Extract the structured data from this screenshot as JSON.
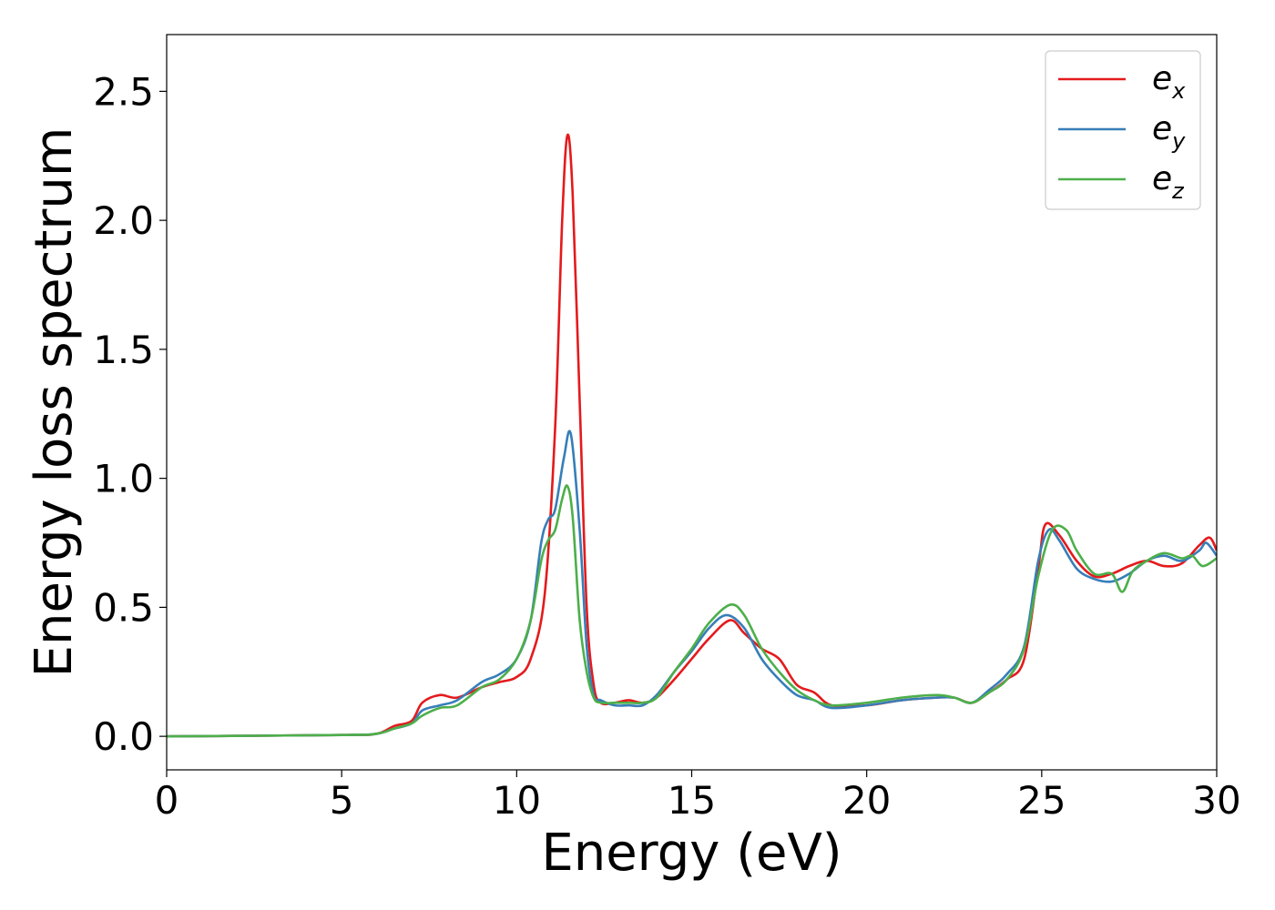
{
  "chart_data": {
    "type": "line",
    "title": "",
    "xlabel": "Energy (eV)",
    "ylabel": "Energy loss spectrum",
    "xlim": [
      0,
      30
    ],
    "ylim": [
      -0.13,
      2.72
    ],
    "xticks": [
      0,
      5,
      10,
      15,
      20,
      25,
      30
    ],
    "xtick_labels": [
      "0",
      "5",
      "10",
      "15",
      "20",
      "25",
      "30"
    ],
    "yticks": [
      0.0,
      0.5,
      1.0,
      1.5,
      2.0,
      2.5
    ],
    "ytick_labels": [
      "0.0",
      "0.5",
      "1.0",
      "1.5",
      "2.0",
      "2.5"
    ],
    "grid": false,
    "legend_position": "top-right",
    "series": [
      {
        "name": "e_x",
        "label_main": "e",
        "label_sub": "x",
        "color": "#e41a1c",
        "x": [
          0,
          5,
          6.0,
          6.5,
          7.0,
          7.3,
          7.8,
          8.3,
          9.0,
          9.5,
          10.0,
          10.4,
          10.8,
          11.1,
          11.3,
          11.45,
          11.6,
          11.8,
          12.0,
          12.2,
          12.4,
          12.8,
          13.2,
          13.6,
          14.0,
          14.5,
          15.0,
          15.5,
          16.1,
          16.5,
          17.0,
          17.5,
          18.0,
          18.5,
          19.0,
          20.0,
          21.0,
          22.0,
          22.5,
          23.0,
          23.5,
          24.0,
          24.5,
          24.9,
          25.1,
          25.5,
          26.0,
          26.5,
          27.0,
          27.5,
          28.0,
          28.5,
          29.0,
          29.5,
          29.8,
          30.0
        ],
        "y": [
          0.0,
          0.005,
          0.01,
          0.04,
          0.06,
          0.13,
          0.16,
          0.15,
          0.19,
          0.21,
          0.23,
          0.3,
          0.55,
          1.2,
          2.0,
          2.33,
          2.1,
          1.3,
          0.5,
          0.2,
          0.13,
          0.13,
          0.14,
          0.13,
          0.15,
          0.22,
          0.3,
          0.38,
          0.45,
          0.4,
          0.34,
          0.3,
          0.2,
          0.17,
          0.12,
          0.12,
          0.14,
          0.15,
          0.15,
          0.13,
          0.17,
          0.22,
          0.3,
          0.65,
          0.82,
          0.78,
          0.68,
          0.62,
          0.63,
          0.66,
          0.68,
          0.66,
          0.67,
          0.74,
          0.77,
          0.72
        ]
      },
      {
        "name": "e_y",
        "label_main": "e",
        "label_sub": "y",
        "color": "#377eb8",
        "x": [
          0,
          5,
          6.0,
          6.5,
          7.0,
          7.3,
          7.8,
          8.3,
          9.0,
          9.5,
          10.0,
          10.4,
          10.7,
          10.9,
          11.1,
          11.35,
          11.55,
          11.8,
          12.0,
          12.2,
          12.4,
          12.8,
          13.2,
          13.6,
          14.0,
          14.5,
          15.0,
          15.5,
          16.0,
          16.5,
          17.0,
          17.5,
          18.0,
          18.5,
          19.0,
          20.0,
          21.0,
          22.0,
          22.5,
          23.0,
          23.5,
          24.0,
          24.5,
          24.9,
          25.2,
          25.5,
          26.0,
          26.5,
          27.0,
          27.5,
          28.0,
          28.5,
          29.0,
          29.5,
          29.7,
          30.0
        ],
        "y": [
          0.0,
          0.005,
          0.01,
          0.03,
          0.05,
          0.1,
          0.12,
          0.14,
          0.21,
          0.24,
          0.3,
          0.45,
          0.75,
          0.84,
          0.88,
          1.08,
          1.17,
          0.8,
          0.35,
          0.16,
          0.14,
          0.12,
          0.12,
          0.12,
          0.16,
          0.25,
          0.33,
          0.42,
          0.47,
          0.42,
          0.3,
          0.22,
          0.16,
          0.14,
          0.11,
          0.12,
          0.14,
          0.15,
          0.15,
          0.13,
          0.18,
          0.24,
          0.35,
          0.68,
          0.8,
          0.76,
          0.65,
          0.61,
          0.6,
          0.63,
          0.68,
          0.7,
          0.68,
          0.72,
          0.75,
          0.7
        ]
      },
      {
        "name": "e_z",
        "label_main": "e",
        "label_sub": "z",
        "color": "#4daf4a",
        "x": [
          0,
          5,
          6.0,
          6.5,
          7.0,
          7.3,
          7.8,
          8.3,
          9.0,
          9.5,
          10.0,
          10.4,
          10.7,
          10.9,
          11.1,
          11.3,
          11.45,
          11.6,
          11.8,
          12.0,
          12.2,
          12.4,
          12.8,
          13.2,
          13.6,
          14.0,
          14.5,
          15.0,
          15.5,
          16.1,
          16.5,
          17.0,
          17.5,
          18.0,
          18.5,
          19.0,
          20.0,
          21.0,
          22.0,
          22.5,
          23.0,
          23.5,
          24.0,
          24.5,
          24.9,
          25.3,
          25.7,
          26.0,
          26.5,
          27.0,
          27.3,
          27.6,
          28.0,
          28.5,
          29.0,
          29.3,
          29.6,
          30.0
        ],
        "y": [
          0.0,
          0.005,
          0.01,
          0.03,
          0.05,
          0.08,
          0.11,
          0.12,
          0.19,
          0.22,
          0.3,
          0.45,
          0.68,
          0.76,
          0.8,
          0.92,
          0.97,
          0.85,
          0.45,
          0.25,
          0.15,
          0.13,
          0.13,
          0.13,
          0.13,
          0.15,
          0.25,
          0.34,
          0.44,
          0.51,
          0.47,
          0.34,
          0.25,
          0.18,
          0.14,
          0.12,
          0.13,
          0.15,
          0.16,
          0.15,
          0.13,
          0.17,
          0.22,
          0.34,
          0.62,
          0.8,
          0.8,
          0.72,
          0.63,
          0.63,
          0.56,
          0.64,
          0.68,
          0.71,
          0.69,
          0.7,
          0.66,
          0.69
        ]
      }
    ]
  }
}
